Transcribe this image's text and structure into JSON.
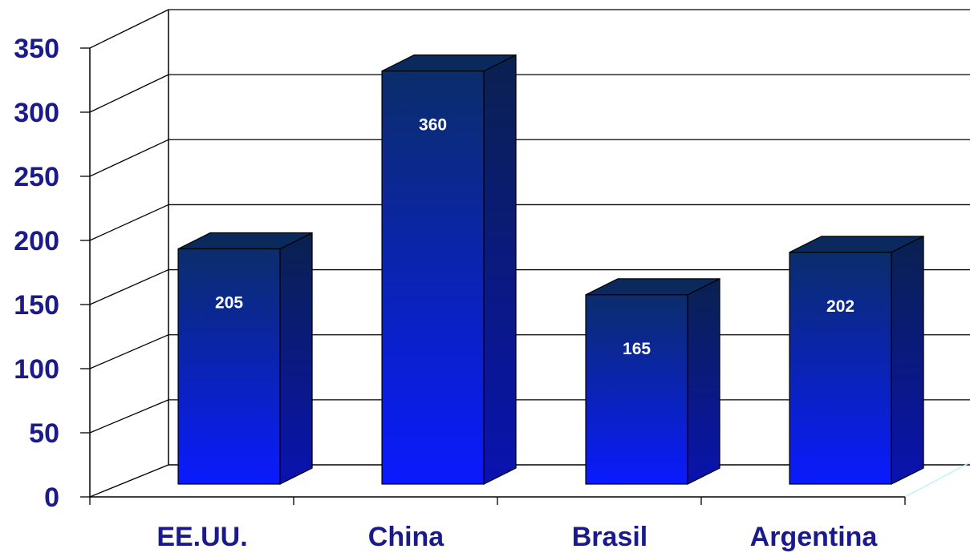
{
  "chart_data": {
    "type": "bar",
    "style": "3d-column",
    "categories": [
      "EE.UU.",
      "China",
      "Brasil",
      "Argentina"
    ],
    "values": [
      205,
      360,
      165,
      202
    ],
    "data_labels": [
      "205",
      "360",
      "165",
      "202"
    ],
    "y_ticks": [
      "0",
      "50",
      "100",
      "150",
      "200",
      "250",
      "300",
      "350"
    ],
    "ylim": [
      0,
      350
    ],
    "grid": true,
    "legend": "none",
    "colors": {
      "bar_front_top": "#0b2d6a",
      "bar_front_bottom": "#0a1aff",
      "bar_side": "#0a1a7a",
      "bar_top": "#0a2a5e",
      "text": "#1a1a8c"
    }
  }
}
